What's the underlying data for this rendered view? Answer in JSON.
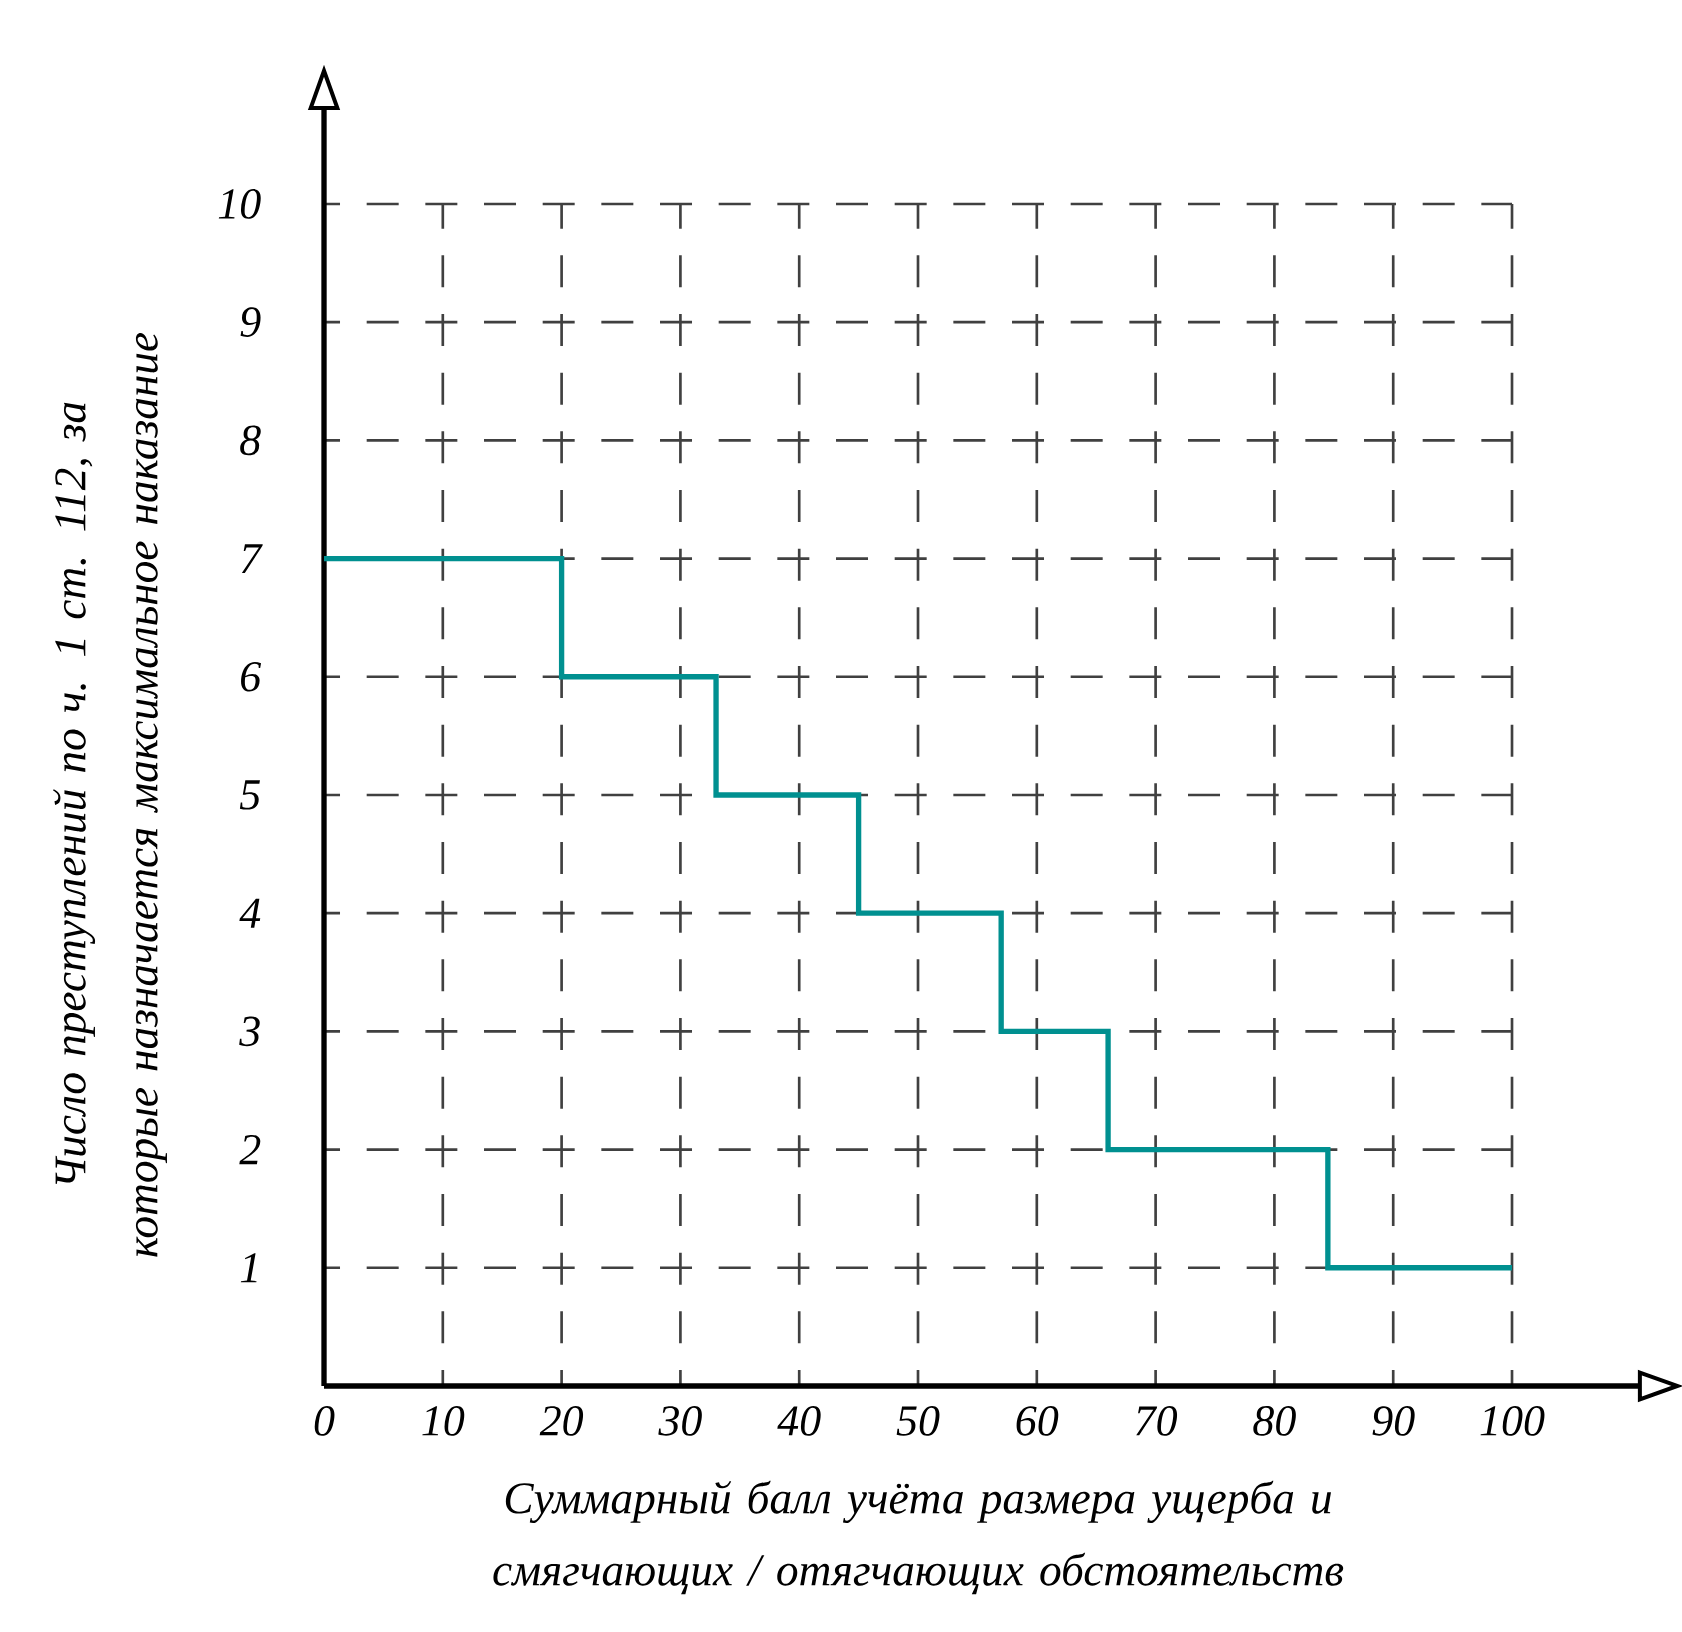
{
  "chart_data": {
    "type": "step",
    "xlabel": "Суммарный балл учёта размера ущерба и смягчающих / отягчающих обстоятельств",
    "ylabel": "Число преступлений по ч. 1 ст. 112, за которые назначается максимальное наказание",
    "x": [
      0,
      20,
      33,
      45,
      57,
      66,
      84.5,
      100
    ],
    "series": [
      {
        "color": "#009090",
        "values": [
          7,
          6,
          5,
          4,
          3,
          2,
          1,
          1
        ]
      }
    ],
    "xlim": [
      0,
      100
    ],
    "ylim": [
      0,
      10
    ],
    "xticks": [
      0,
      10,
      20,
      30,
      40,
      50,
      60,
      70,
      80,
      90,
      100
    ],
    "yticks": [
      1,
      2,
      3,
      4,
      5,
      6,
      7,
      8,
      9,
      10
    ],
    "grid": true
  }
}
